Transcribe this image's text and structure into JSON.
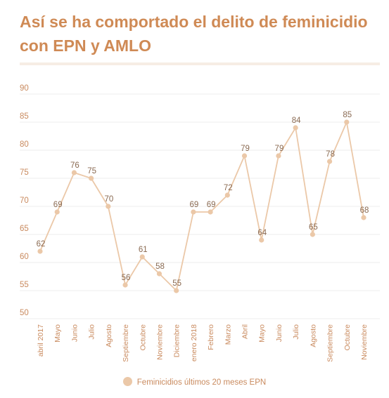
{
  "title": "Así se ha comportado el delito de feminicidio con EPN y AMLO",
  "colors": {
    "title": "#cf8a55",
    "line": "#ebc8a8",
    "axis_text": "#c98a5e",
    "grid": "#eeeeee"
  },
  "legend": {
    "label": "Feminicidios últimos 20 meses EPN"
  },
  "chart_data": {
    "type": "line",
    "title": "Así se ha comportado el delito de feminicidio con EPN y AMLO",
    "xlabel": "",
    "ylabel": "",
    "ylim": [
      50,
      90
    ],
    "yticks": [
      50,
      55,
      60,
      65,
      70,
      75,
      80,
      85,
      90
    ],
    "grid": true,
    "legend_position": "bottom",
    "categories": [
      "abril 2017",
      "Mayo",
      "Junio",
      "Julio",
      "Agosto",
      "Septiembre",
      "Octubre",
      "Noviembre",
      "Diciembre",
      "enero 2018",
      "Febrero",
      "Marzo",
      "Abril",
      "Mayo",
      "Junio",
      "Julio",
      "Agosto",
      "Septiembre",
      "Octubre",
      "Noviembre"
    ],
    "series": [
      {
        "name": "Feminicidios últimos 20 meses EPN",
        "values": [
          62,
          69,
          76,
          75,
          70,
          56,
          61,
          58,
          55,
          69,
          69,
          72,
          79,
          64,
          79,
          84,
          65,
          78,
          85,
          68
        ]
      }
    ]
  }
}
